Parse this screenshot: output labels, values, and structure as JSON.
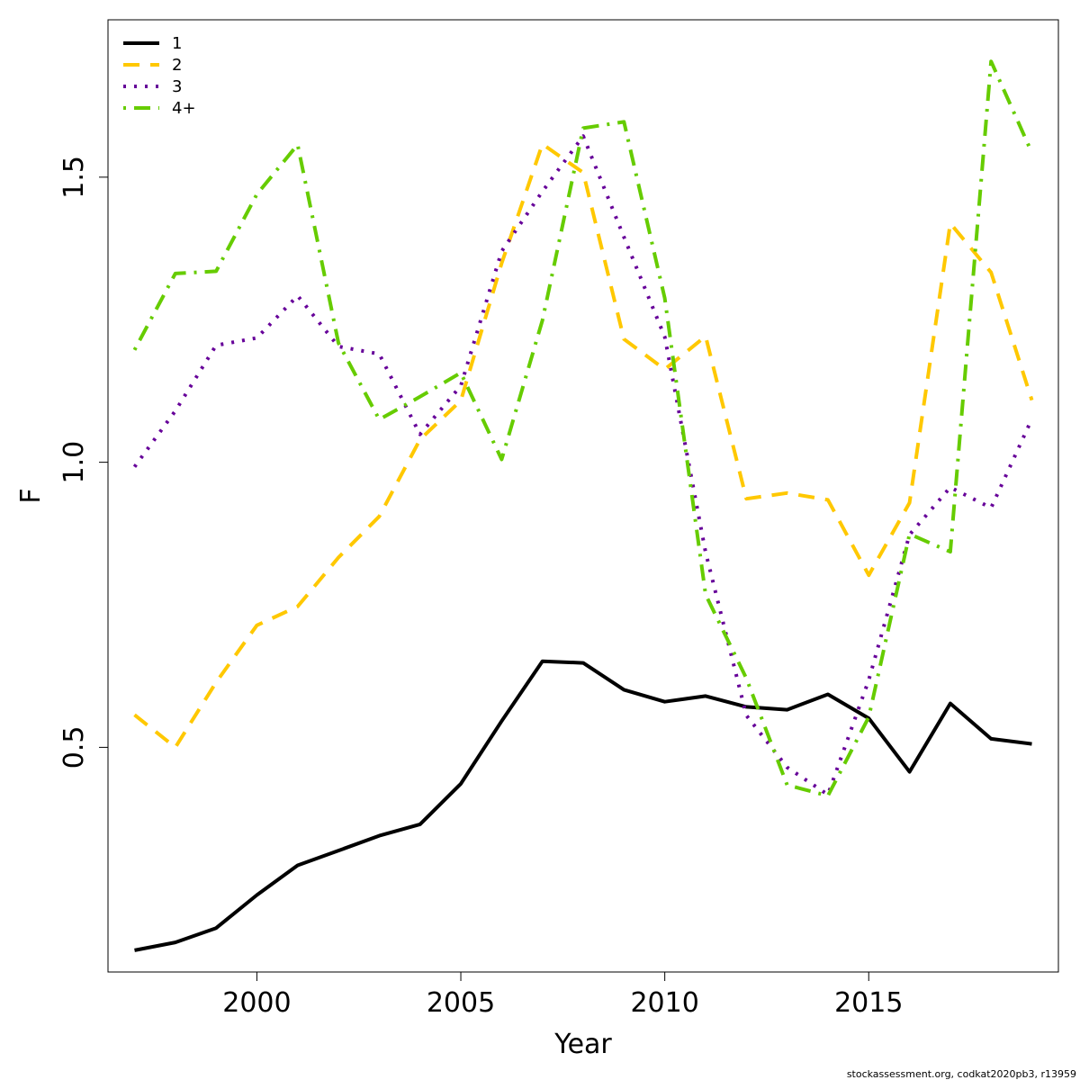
{
  "chart_data": {
    "type": "line",
    "title": "",
    "xlabel": "Year",
    "ylabel": "F",
    "xlim": [
      1996.35,
      2019.65
    ],
    "ylim": [
      0.106,
      1.776
    ],
    "x_ticks": [
      2000,
      2005,
      2010,
      2015
    ],
    "x_tick_labels": [
      "2000",
      "2005",
      "2010",
      "2015"
    ],
    "y_ticks": [
      0.5,
      1.0,
      1.5
    ],
    "y_tick_labels": [
      "0.5",
      "1.0",
      "1.5"
    ],
    "grid": false,
    "legend_position": "top-left",
    "x": [
      1997,
      1998,
      1999,
      2000,
      2001,
      2002,
      2003,
      2004,
      2005,
      2006,
      2007,
      2008,
      2009,
      2010,
      2011,
      2012,
      2013,
      2014,
      2015,
      2016,
      2017,
      2018,
      2019
    ],
    "series": [
      {
        "name": "1",
        "color": "#000000",
        "dash": "solid",
        "values": [
          0.144,
          0.158,
          0.183,
          0.241,
          0.293,
          0.319,
          0.345,
          0.365,
          0.436,
          0.546,
          0.651,
          0.648,
          0.601,
          0.58,
          0.59,
          0.571,
          0.566,
          0.593,
          0.551,
          0.457,
          0.577,
          0.515,
          0.506
        ]
      },
      {
        "name": "2",
        "color": "#FFC800",
        "dash": "dashed",
        "values": [
          0.557,
          0.5,
          0.614,
          0.714,
          0.747,
          0.833,
          0.905,
          1.04,
          1.108,
          1.349,
          1.558,
          1.508,
          1.216,
          1.163,
          1.221,
          0.936,
          0.946,
          0.934,
          0.802,
          0.929,
          1.419,
          1.333,
          1.109
        ]
      },
      {
        "name": "3",
        "color": "#660099",
        "dash": "dotted",
        "values": [
          0.992,
          1.09,
          1.205,
          1.218,
          1.292,
          1.203,
          1.19,
          1.049,
          1.134,
          1.37,
          1.475,
          1.572,
          1.395,
          1.22,
          0.842,
          0.556,
          0.465,
          0.417,
          0.618,
          0.873,
          0.956,
          0.92,
          1.076
        ]
      },
      {
        "name": "4+",
        "color": "#66CC00",
        "dash": "dotdash",
        "values": [
          1.197,
          1.331,
          1.335,
          1.47,
          1.557,
          1.209,
          1.075,
          1.115,
          1.157,
          1.005,
          1.249,
          1.586,
          1.597,
          1.288,
          0.768,
          0.621,
          0.434,
          0.415,
          0.553,
          0.874,
          0.843,
          1.703,
          1.543
        ]
      }
    ]
  },
  "footer": {
    "credit": "stockassessment.org, codkat2020pb3, r13959"
  }
}
